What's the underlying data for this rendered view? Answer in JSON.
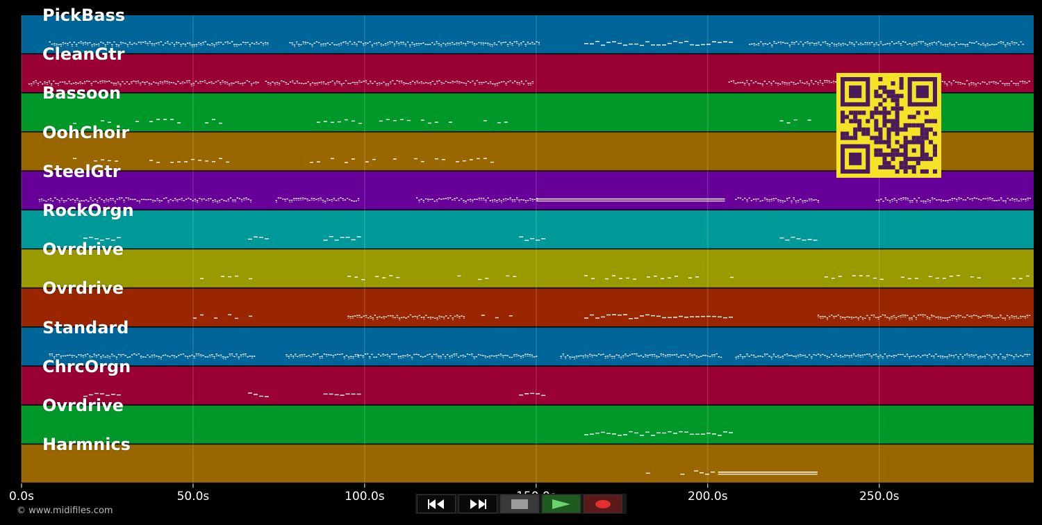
{
  "app": {
    "copyright": "© www.midifiles.com"
  },
  "timeline": {
    "duration_s": 295,
    "ticks": [
      {
        "value": 0,
        "label": "0.0s"
      },
      {
        "value": 50,
        "label": "50.0s"
      },
      {
        "value": 100,
        "label": "100.0s"
      },
      {
        "value": 150,
        "label": "150.0s"
      },
      {
        "value": 200,
        "label": "200.0s"
      },
      {
        "value": 250,
        "label": "250.0s"
      }
    ]
  },
  "tracks": [
    {
      "name": "PickBass",
      "color": "#006699",
      "segments": [
        [
          8,
          72,
          "dense"
        ],
        [
          78,
          151,
          "dense"
        ],
        [
          164,
          207,
          "dash"
        ],
        [
          212,
          292,
          "dense"
        ]
      ]
    },
    {
      "name": "CleanGtr",
      "color": "#990033",
      "segments": [
        [
          2,
          69,
          "dense"
        ],
        [
          71,
          149,
          "dense"
        ],
        [
          206,
          294,
          "dense"
        ]
      ]
    },
    {
      "name": "Bassoon",
      "color": "#009929",
      "segments": [
        [
          15,
          61,
          "sparse"
        ],
        [
          84,
          141,
          "sparse"
        ],
        [
          219,
          235,
          "sparse"
        ]
      ]
    },
    {
      "name": "OohChoir",
      "color": "#996600",
      "segments": [
        [
          15,
          61,
          "sparse"
        ],
        [
          84,
          141,
          "sparse"
        ]
      ]
    },
    {
      "name": "SteelGtr",
      "color": "#660099",
      "segments": [
        [
          5,
          67,
          "dense"
        ],
        [
          74,
          98,
          "dense"
        ],
        [
          115,
          150,
          "dense"
        ],
        [
          150,
          205,
          "solid"
        ],
        [
          208,
          232,
          "dense"
        ],
        [
          249,
          294,
          "dense"
        ]
      ]
    },
    {
      "name": "RockOrgn",
      "color": "#009999",
      "segments": [
        [
          18,
          28,
          "dash"
        ],
        [
          66,
          72,
          "dash"
        ],
        [
          88,
          98,
          "dash"
        ],
        [
          145,
          152,
          "dash"
        ],
        [
          221,
          232,
          "dash"
        ]
      ]
    },
    {
      "name": "Ovrdrive",
      "color": "#999900",
      "segments": [
        [
          48,
          67,
          "sparse"
        ],
        [
          95,
          115,
          "sparse"
        ],
        [
          127,
          145,
          "sparse"
        ],
        [
          164,
          207,
          "sparse"
        ],
        [
          232,
          294,
          "sparse"
        ]
      ]
    },
    {
      "name": "Ovrdrive",
      "color": "#992600",
      "segments": [
        [
          48,
          67,
          "sparse"
        ],
        [
          95,
          129,
          "dense"
        ],
        [
          134,
          145,
          "sparse"
        ],
        [
          164,
          207,
          "dash"
        ],
        [
          232,
          294,
          "dense"
        ]
      ]
    },
    {
      "name": "Standard",
      "color": "#006699",
      "segments": [
        [
          8,
          68,
          "dense"
        ],
        [
          77,
          98,
          "dense"
        ],
        [
          98,
          150,
          "dense"
        ],
        [
          157,
          204,
          "dense"
        ],
        [
          208,
          294,
          "dense"
        ]
      ]
    },
    {
      "name": "ChrcOrgn",
      "color": "#990033",
      "segments": [
        [
          18,
          28,
          "dash"
        ],
        [
          66,
          72,
          "dash"
        ],
        [
          88,
          98,
          "dash"
        ],
        [
          145,
          152,
          "dash"
        ]
      ]
    },
    {
      "name": "Ovrdrive",
      "color": "#009929",
      "segments": [
        [
          164,
          207,
          "dash"
        ]
      ]
    },
    {
      "name": "Harmnics",
      "color": "#996600",
      "segments": [
        [
          182,
          183,
          "dash"
        ],
        [
          192,
          193,
          "dash"
        ],
        [
          196,
          201,
          "dash"
        ],
        [
          203,
          232,
          "solid"
        ]
      ]
    }
  ],
  "transport": {
    "rewind": "rewind-icon",
    "forward": "fast-forward-icon",
    "stop": "stop-icon",
    "play": "play-icon",
    "record": "record-icon",
    "colors": {
      "stop": "#9a9a9a",
      "play": "#6bd36b",
      "record": "#e03030"
    }
  },
  "overlay": {
    "qr": "qr-code-icon",
    "colors": {
      "bg": "#f5e328",
      "fg": "#4a1a5a"
    }
  }
}
